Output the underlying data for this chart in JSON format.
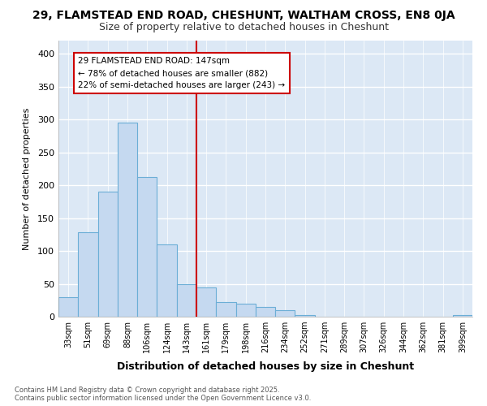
{
  "title_line1": "29, FLAMSTEAD END ROAD, CHESHUNT, WALTHAM CROSS, EN8 0JA",
  "title_line2": "Size of property relative to detached houses in Cheshunt",
  "xlabel": "Distribution of detached houses by size in Cheshunt",
  "ylabel": "Number of detached properties",
  "categories": [
    "33sqm",
    "51sqm",
    "69sqm",
    "88sqm",
    "106sqm",
    "124sqm",
    "143sqm",
    "161sqm",
    "179sqm",
    "198sqm",
    "216sqm",
    "234sqm",
    "252sqm",
    "271sqm",
    "289sqm",
    "307sqm",
    "326sqm",
    "344sqm",
    "362sqm",
    "381sqm",
    "399sqm"
  ],
  "bar_heights": [
    30,
    128,
    190,
    295,
    213,
    110,
    50,
    44,
    22,
    20,
    15,
    10,
    2,
    0,
    0,
    0,
    0,
    0,
    0,
    0,
    2
  ],
  "bar_color": "#c5d9f0",
  "bar_edge_color": "#6baed6",
  "vline_color": "#cc0000",
  "annotation_text_line1": "29 FLAMSTEAD END ROAD: 147sqm",
  "annotation_text_line2": "← 78% of detached houses are smaller (882)",
  "annotation_text_line3": "22% of semi-detached houses are larger (243) →",
  "annotation_box_color": "#cc0000",
  "annotation_text_color": "#000000",
  "ylim": [
    0,
    420
  ],
  "yticks": [
    0,
    50,
    100,
    150,
    200,
    250,
    300,
    350,
    400
  ],
  "background_color": "#dce8f5",
  "plot_bg_color": "#dce8f5",
  "grid_color": "#ffffff",
  "footnote": "Contains HM Land Registry data © Crown copyright and database right 2025.\nContains public sector information licensed under the Open Government Licence v3.0.",
  "title_fontsize": 10,
  "subtitle_fontsize": 9,
  "vline_x_index": 6
}
